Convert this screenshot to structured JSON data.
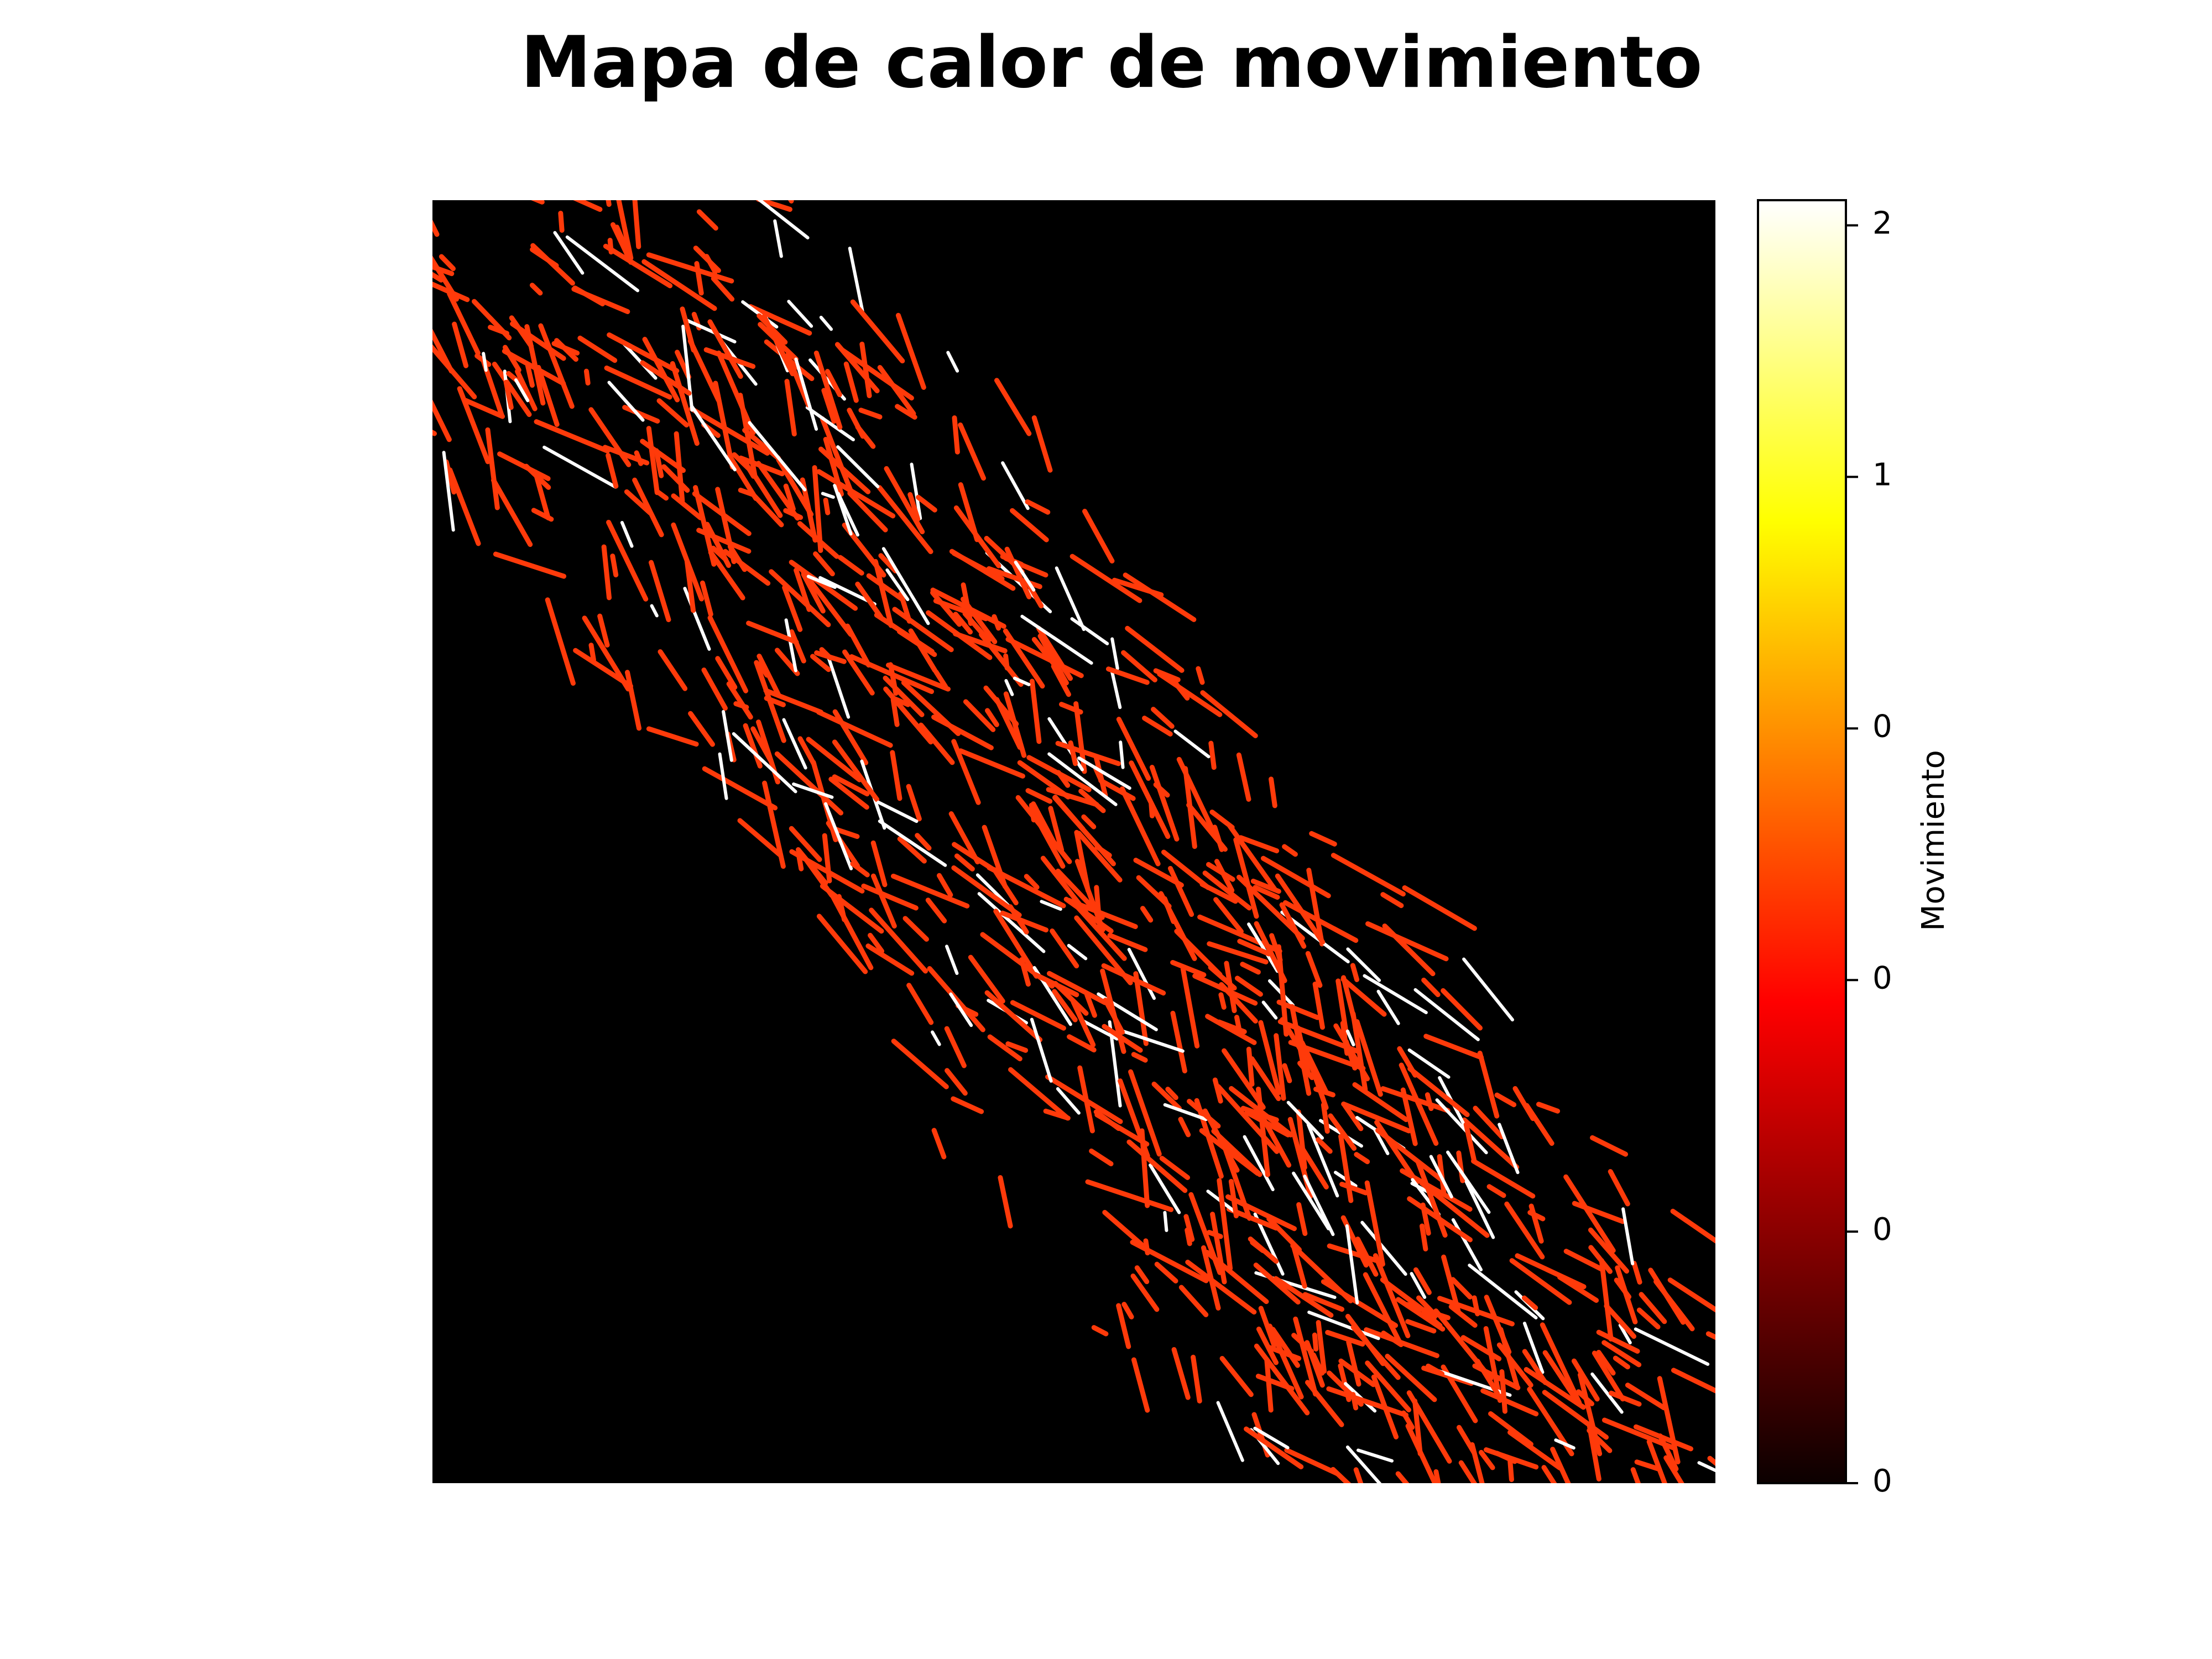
{
  "chart_data": {
    "type": "heatmap",
    "title": "Mapa de calor de movimiento",
    "colorbar_label": "Movimiento",
    "colormap": "hot",
    "clim": [
      0,
      2.04
    ],
    "cticks": [
      0,
      {
        "value": 0.4,
        "label": "0"
      },
      {
        "value": 0.8,
        "label": "0"
      },
      {
        "value": 1.2,
        "label": "0"
      },
      {
        "value": 1.6,
        "label": "1"
      },
      2
    ]
  }
}
